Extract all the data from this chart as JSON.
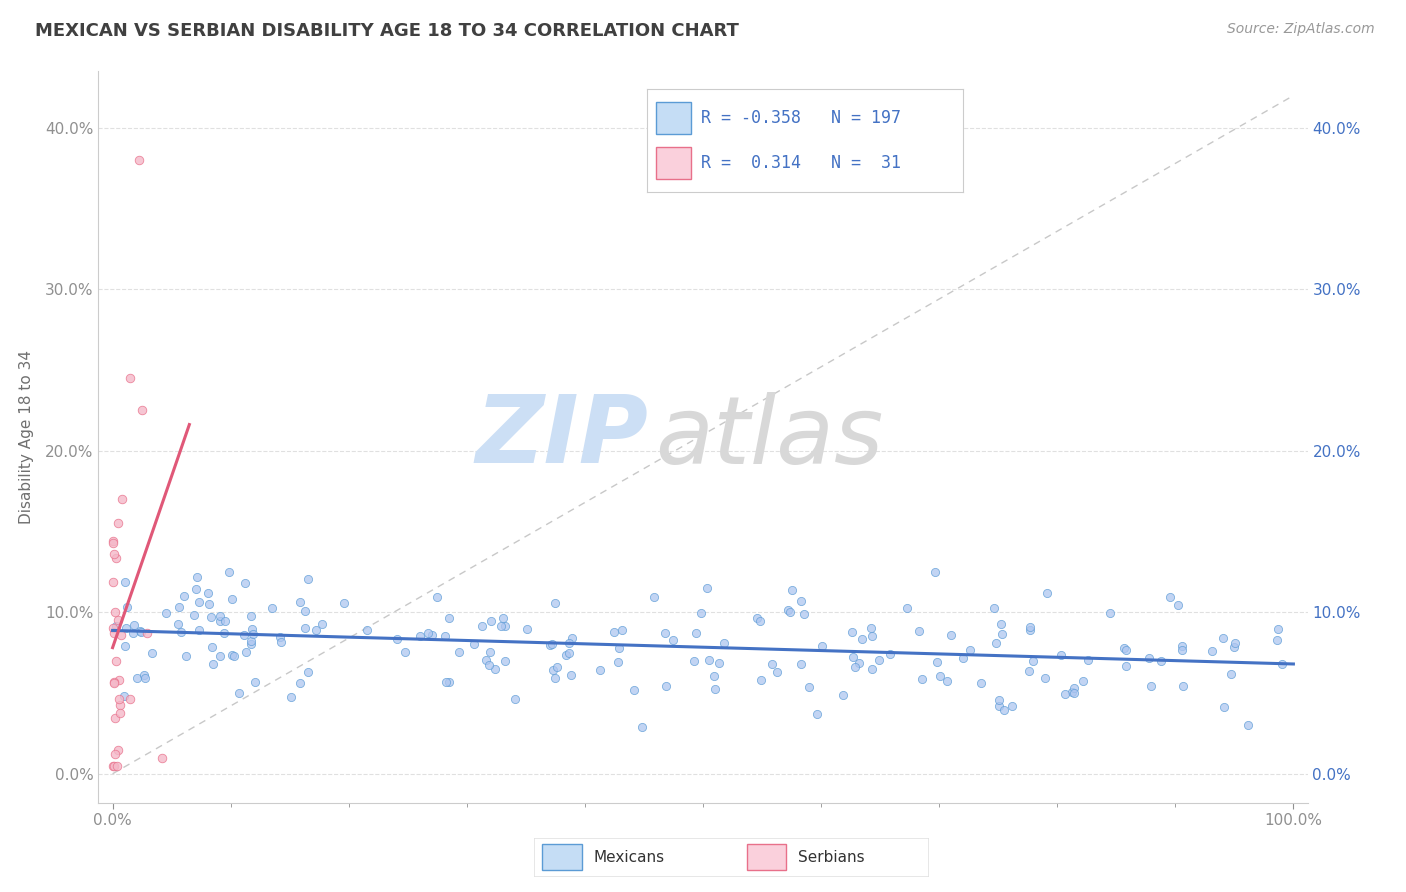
{
  "title": "MEXICAN VS SERBIAN DISABILITY AGE 18 TO 34 CORRELATION CHART",
  "source_text": "Source: ZipAtlas.com",
  "ylabel": "Disability Age 18 to 34",
  "mexican_color": "#aec6f0",
  "serbian_color": "#f4b8c8",
  "mexican_edge_color": "#5b9bd5",
  "serbian_edge_color": "#e8708a",
  "mexican_line_color": "#4472c4",
  "serbian_line_color": "#e05878",
  "diag_color": "#c8c8c8",
  "legend_box_color_mexican": "#c5ddf5",
  "legend_box_color_serbian": "#fad0dc",
  "R_mexican": -0.358,
  "N_mexican": 197,
  "R_serbian": 0.314,
  "N_serbian": 31,
  "background_color": "#ffffff",
  "grid_color": "#e0e0e0",
  "title_color": "#404040",
  "axis_label_color": "#707070",
  "tick_color": "#909090",
  "source_color": "#999999",
  "legend_text_color": "#4472c4",
  "right_tick_color": "#4472c4",
  "mex_seed": 42,
  "ser_seed": 77
}
